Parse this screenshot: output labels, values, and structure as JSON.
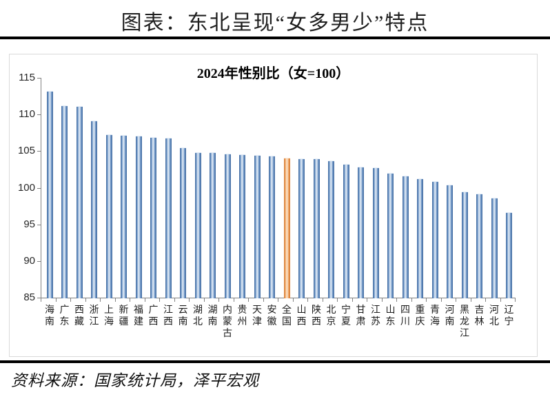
{
  "header": {
    "title": "图表：东北呈现“女多男少”特点"
  },
  "footer": {
    "source": "资料来源：国家统计局，泽平宏观"
  },
  "chart_data": {
    "type": "bar",
    "title": "2024年性别比（女=100）",
    "categories": [
      "海南",
      "广东",
      "西藏",
      "浙江",
      "上海",
      "新疆",
      "福建",
      "广西",
      "江西",
      "云南",
      "湖北",
      "湖南",
      "内蒙古",
      "贵州",
      "天津",
      "安徽",
      "全国",
      "山西",
      "陕西",
      "北京",
      "宁夏",
      "甘肃",
      "江苏",
      "山东",
      "四川",
      "重庆",
      "青海",
      "河南",
      "黑龙江",
      "吉林",
      "河北",
      "辽宁"
    ],
    "values": [
      113.2,
      111.2,
      111.1,
      109.2,
      107.3,
      107.2,
      107.1,
      106.9,
      106.8,
      105.5,
      104.8,
      104.8,
      104.7,
      104.6,
      104.5,
      104.4,
      104.1,
      104.0,
      104.0,
      103.7,
      103.2,
      102.9,
      102.8,
      102.0,
      101.6,
      101.3,
      100.9,
      100.4,
      99.5,
      99.2,
      98.6,
      96.7
    ],
    "highlight_category": "全国",
    "bar_color": "#4f81bd",
    "highlight_color": "#e8833a",
    "axis_color": "#808080",
    "ylim": [
      85,
      115
    ],
    "yticks": [
      85,
      90,
      95,
      100,
      105,
      110,
      115
    ],
    "grid": false,
    "legend": "none",
    "xlabel": "",
    "ylabel": ""
  }
}
